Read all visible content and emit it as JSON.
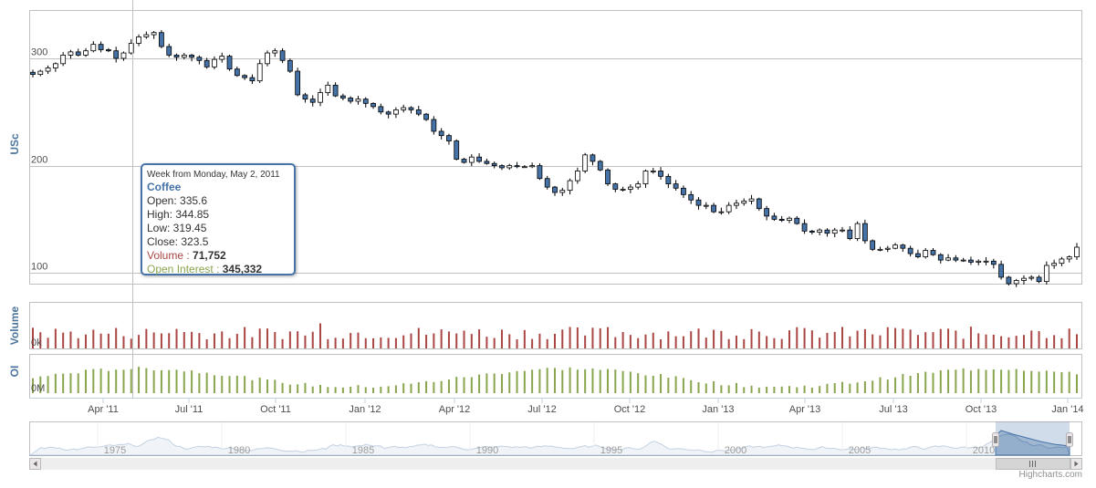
{
  "chart_data": {
    "type": "candlestick",
    "instrument": "Coffee",
    "ylabel": "USc",
    "volume_label": "Volume",
    "oi_label": "OI",
    "volume_tick": "0k",
    "oi_tick": "0M",
    "ylim": [
      90,
      345
    ],
    "y_ticks": [
      "100",
      "200",
      "300"
    ],
    "x_ticks": [
      "Apr '11",
      "Jul '11",
      "Oct '11",
      "Jan '12",
      "Apr '12",
      "Jul '12",
      "Oct '12",
      "Jan '13",
      "Apr '13",
      "Jul '13",
      "Oct '13",
      "Jan '14"
    ],
    "navigator_ticks": [
      "1975",
      "1980",
      "1985",
      "1990",
      "1995",
      "2000",
      "2005",
      "2010"
    ],
    "grid": true,
    "series_colors": {
      "down": "#4572a7",
      "up": "#ffffff",
      "volume": "#aa4643",
      "open_interest": "#89a54e",
      "navigator": "#4572a7"
    },
    "weekly_closes": [
      285,
      288,
      291,
      295,
      303,
      306,
      303,
      307,
      313,
      308,
      307,
      300,
      305,
      314,
      320,
      322,
      324,
      311,
      303,
      301,
      303,
      301,
      298,
      292,
      299,
      302,
      290,
      284,
      282,
      279,
      295,
      305,
      307,
      298,
      288,
      266,
      262,
      259,
      268,
      275,
      265,
      263,
      260,
      262,
      258,
      255,
      250,
      248,
      252,
      254,
      252,
      248,
      243,
      232,
      228,
      223,
      206,
      203,
      208,
      204,
      202,
      200,
      198,
      200,
      199,
      199,
      200,
      188,
      180,
      175,
      177,
      186,
      195,
      210,
      204,
      196,
      183,
      178,
      178,
      180,
      183,
      195,
      195,
      190,
      183,
      179,
      173,
      168,
      163,
      163,
      157,
      157,
      163,
      165,
      167,
      169,
      160,
      153,
      150,
      149,
      151,
      146,
      139,
      138,
      140,
      137,
      140,
      140,
      132,
      146,
      130,
      122,
      122,
      123,
      126,
      123,
      118,
      115,
      121,
      117,
      112,
      114,
      112,
      112,
      110,
      111,
      111,
      108,
      96,
      90,
      93,
      95,
      96,
      92,
      107,
      109,
      113,
      115,
      124
    ],
    "tooltip": {
      "header": "Week from Monday, May 2, 2011",
      "series": "Coffee",
      "open": "Open: 335.6",
      "high": "High: 344.85",
      "low": "Low: 319.45",
      "close": "Close: 323.5",
      "volume_label": "Volume : ",
      "volume_value": "71,752",
      "oi_label": "Open Interest : ",
      "oi_value": "345,332"
    }
  },
  "credits": "Highcharts.com"
}
